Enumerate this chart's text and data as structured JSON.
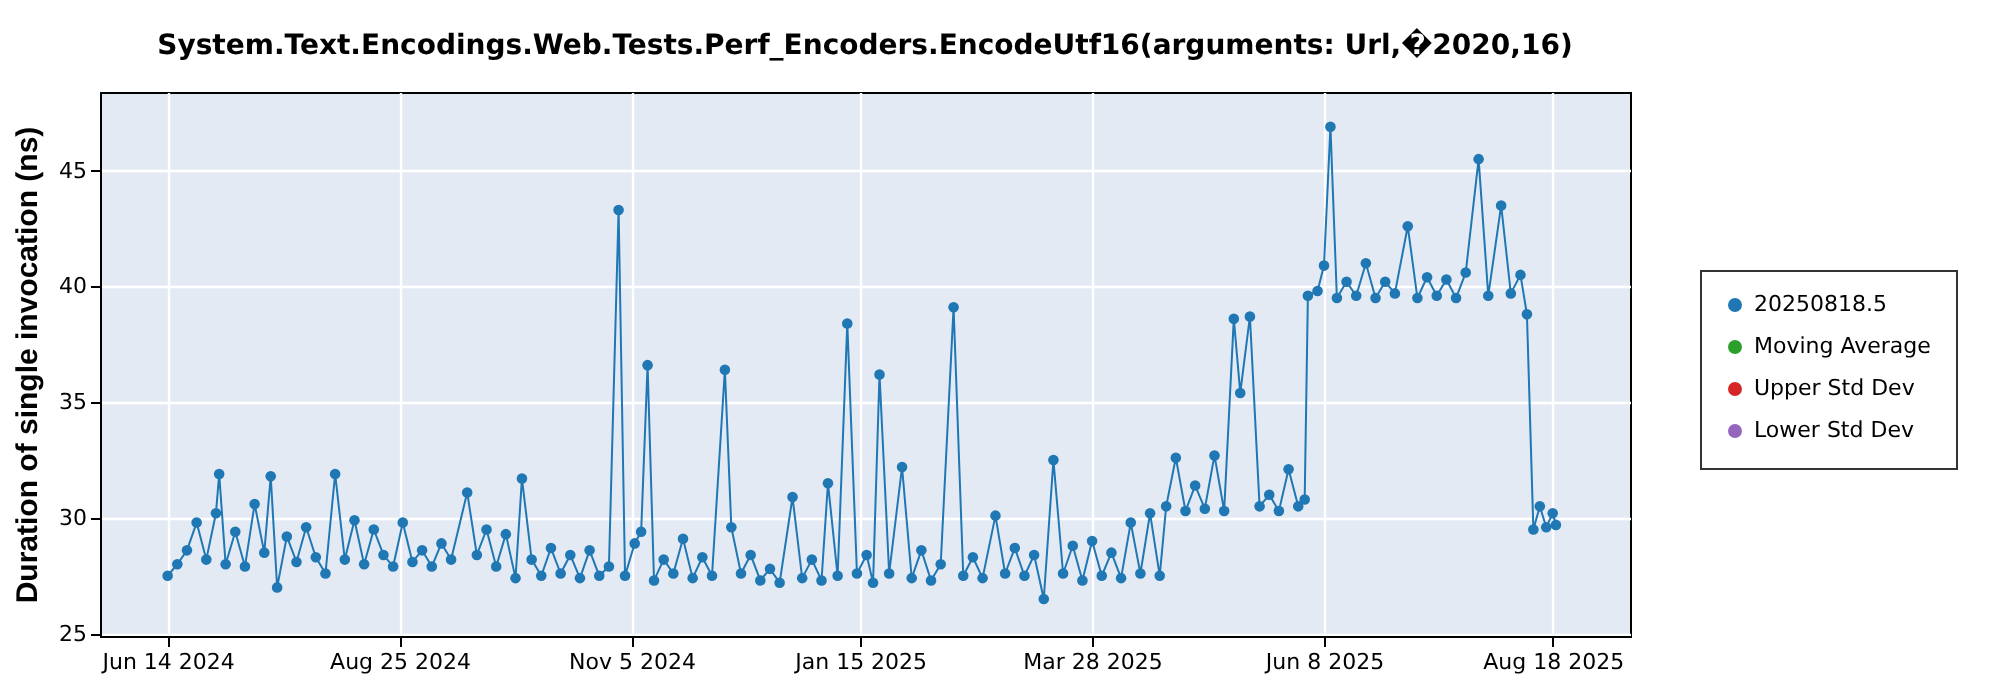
{
  "chart_data": {
    "type": "line",
    "title": "System.Text.Encodings.Web.Tests.Perf_Encoders.EncodeUtf16(arguments: Url,�2020,16)",
    "ylabel": "Duration of single invocation (ns)",
    "x": [
      "2024-06-14",
      "2024-06-17",
      "2024-06-20",
      "2024-06-23",
      "2024-06-26",
      "2024-06-29",
      "2024-06-30",
      "2024-07-02",
      "2024-07-05",
      "2024-07-08",
      "2024-07-11",
      "2024-07-14",
      "2024-07-16",
      "2024-07-18",
      "2024-07-21",
      "2024-07-24",
      "2024-07-27",
      "2024-07-30",
      "2024-08-02",
      "2024-08-05",
      "2024-08-08",
      "2024-08-11",
      "2024-08-14",
      "2024-08-17",
      "2024-08-20",
      "2024-08-23",
      "2024-08-26",
      "2024-08-29",
      "2024-09-01",
      "2024-09-04",
      "2024-09-07",
      "2024-09-10",
      "2024-09-15",
      "2024-09-18",
      "2024-09-21",
      "2024-09-24",
      "2024-09-27",
      "2024-09-30",
      "2024-10-02",
      "2024-10-05",
      "2024-10-08",
      "2024-10-11",
      "2024-10-14",
      "2024-10-17",
      "2024-10-20",
      "2024-10-23",
      "2024-10-26",
      "2024-10-29",
      "2024-11-01",
      "2024-11-03",
      "2024-11-06",
      "2024-11-08",
      "2024-11-10",
      "2024-11-12",
      "2024-11-15",
      "2024-11-18",
      "2024-11-21",
      "2024-11-24",
      "2024-11-27",
      "2024-11-30",
      "2024-12-04",
      "2024-12-06",
      "2024-12-09",
      "2024-12-12",
      "2024-12-15",
      "2024-12-18",
      "2024-12-21",
      "2024-12-25",
      "2024-12-28",
      "2024-12-31",
      "2025-01-03",
      "2025-01-05",
      "2025-01-08",
      "2025-01-11",
      "2025-01-14",
      "2025-01-17",
      "2025-01-19",
      "2025-01-21",
      "2025-01-24",
      "2025-01-28",
      "2025-01-31",
      "2025-02-03",
      "2025-02-06",
      "2025-02-09",
      "2025-02-13",
      "2025-02-16",
      "2025-02-19",
      "2025-02-22",
      "2025-02-26",
      "2025-03-01",
      "2025-03-04",
      "2025-03-07",
      "2025-03-10",
      "2025-03-13",
      "2025-03-16",
      "2025-03-19",
      "2025-03-22",
      "2025-03-25",
      "2025-03-28",
      "2025-03-31",
      "2025-04-03",
      "2025-04-06",
      "2025-04-09",
      "2025-04-12",
      "2025-04-15",
      "2025-04-18",
      "2025-04-20",
      "2025-04-23",
      "2025-04-26",
      "2025-04-29",
      "2025-05-02",
      "2025-05-05",
      "2025-05-08",
      "2025-05-11",
      "2025-05-13",
      "2025-05-16",
      "2025-05-19",
      "2025-05-22",
      "2025-05-25",
      "2025-05-28",
      "2025-05-31",
      "2025-06-02",
      "2025-06-03",
      "2025-06-06",
      "2025-06-08",
      "2025-06-10",
      "2025-06-12",
      "2025-06-15",
      "2025-06-18",
      "2025-06-21",
      "2025-06-24",
      "2025-06-27",
      "2025-06-30",
      "2025-07-04",
      "2025-07-07",
      "2025-07-10",
      "2025-07-13",
      "2025-07-16",
      "2025-07-19",
      "2025-07-22",
      "2025-07-26",
      "2025-07-29",
      "2025-08-02",
      "2025-08-05",
      "2025-08-08",
      "2025-08-10",
      "2025-08-12",
      "2025-08-14",
      "2025-08-16",
      "2025-08-18",
      "2025-08-19"
    ],
    "series": [
      {
        "name": "20250818.5",
        "color": "#1f77b4",
        "values": [
          27.5,
          28.0,
          28.6,
          29.8,
          28.2,
          30.2,
          31.9,
          28.0,
          29.4,
          27.9,
          30.6,
          28.5,
          31.8,
          27.0,
          29.2,
          28.1,
          29.6,
          28.3,
          27.6,
          31.9,
          28.2,
          29.9,
          28.0,
          29.5,
          28.4,
          27.9,
          29.8,
          28.1,
          28.6,
          27.9,
          28.9,
          28.2,
          31.1,
          28.4,
          29.5,
          27.9,
          29.3,
          27.4,
          31.7,
          28.2,
          27.5,
          28.7,
          27.6,
          28.4,
          27.4,
          28.6,
          27.5,
          27.9,
          43.3,
          27.5,
          28.9,
          29.4,
          36.6,
          27.3,
          28.2,
          27.6,
          29.1,
          27.4,
          28.3,
          27.5,
          36.4,
          29.6,
          27.6,
          28.4,
          27.3,
          27.8,
          27.2,
          30.9,
          27.4,
          28.2,
          27.3,
          31.5,
          27.5,
          38.4,
          27.6,
          28.4,
          27.2,
          36.2,
          27.6,
          32.2,
          27.4,
          28.6,
          27.3,
          28.0,
          39.1,
          27.5,
          28.3,
          27.4,
          30.1,
          27.6,
          28.7,
          27.5,
          28.4,
          26.5,
          32.5,
          27.6,
          28.8,
          27.3,
          29.0,
          27.5,
          28.5,
          27.4,
          29.8,
          27.6,
          30.2,
          27.5,
          30.5,
          32.6,
          30.3,
          31.4,
          30.4,
          32.7,
          30.3,
          38.6,
          35.4,
          38.7,
          30.5,
          31.0,
          30.3,
          32.1,
          30.5,
          30.8,
          39.6,
          39.8,
          40.9,
          46.9,
          39.5,
          40.2,
          39.6,
          41.0,
          39.5,
          40.2,
          39.7,
          42.6,
          39.5,
          40.4,
          39.6,
          40.3,
          39.5,
          40.6,
          45.5,
          39.6,
          43.5,
          39.7,
          40.5,
          38.8,
          29.5,
          30.5,
          29.6,
          30.2,
          29.7
        ]
      },
      {
        "name": "Moving Average",
        "color": "#2ca02c",
        "values": [
          null,
          null,
          null,
          null,
          null,
          null,
          null,
          null,
          null,
          null,
          null,
          null,
          null,
          null,
          null,
          null,
          null,
          null,
          null,
          null,
          null,
          null,
          null,
          null,
          null,
          null,
          null,
          null,
          null,
          null,
          null,
          null,
          null,
          null,
          null,
          null,
          null,
          null,
          null,
          null,
          null,
          null,
          null,
          null,
          null,
          null,
          null,
          null,
          null,
          null,
          null,
          null,
          null,
          null,
          null,
          null,
          null,
          null,
          null,
          null,
          null,
          null,
          null,
          null,
          null,
          null,
          null,
          null,
          null,
          null,
          null,
          null,
          null,
          null,
          null,
          null,
          null,
          null,
          null,
          null,
          null,
          null,
          null,
          null,
          null,
          null,
          null,
          null,
          null,
          null,
          null,
          null,
          null,
          null,
          null,
          null,
          null,
          null,
          null,
          null,
          null,
          null,
          null,
          null,
          null,
          null,
          null,
          null,
          null,
          null,
          null,
          null,
          null,
          null,
          null,
          null,
          null,
          null,
          null,
          null,
          null,
          null,
          null,
          null,
          null,
          null,
          null,
          null,
          null,
          null,
          null,
          null,
          null,
          null,
          null,
          null,
          null,
          null,
          null,
          null,
          null,
          null,
          null,
          null,
          null,
          null,
          null,
          null,
          null,
          null,
          null
        ]
      },
      {
        "name": "Upper Std Dev",
        "color": "#d62728",
        "values": [
          null,
          null,
          null,
          null,
          null,
          null,
          null,
          null,
          null,
          null,
          null,
          null,
          null,
          null,
          null,
          null,
          null,
          null,
          null,
          null,
          null,
          null,
          null,
          null,
          null,
          null,
          null,
          null,
          null,
          null,
          null,
          null,
          null,
          null,
          null,
          null,
          null,
          null,
          null,
          null,
          null,
          null,
          null,
          null,
          null,
          null,
          null,
          null,
          null,
          null,
          null,
          null,
          null,
          null,
          null,
          null,
          null,
          null,
          null,
          null,
          null,
          null,
          null,
          null,
          null,
          null,
          null,
          null,
          null,
          null,
          null,
          null,
          null,
          null,
          null,
          null,
          null,
          null,
          null,
          null,
          null,
          null,
          null,
          null,
          null,
          null,
          null,
          null,
          null,
          null,
          null,
          null,
          null,
          null,
          null,
          null,
          null,
          null,
          null,
          null,
          null,
          null,
          null,
          null,
          null,
          null,
          null,
          null,
          null,
          null,
          null,
          null,
          null,
          null,
          null,
          null,
          null,
          null,
          null,
          null,
          null,
          null,
          null,
          null,
          null,
          null,
          null,
          null,
          null,
          null,
          null,
          null,
          null,
          null,
          null,
          null,
          null,
          null,
          null,
          null,
          null,
          null,
          null,
          null,
          null,
          null,
          null,
          null,
          null,
          null,
          null
        ]
      },
      {
        "name": "Lower Std Dev",
        "color": "#9467bd",
        "values": [
          null,
          null,
          null,
          null,
          null,
          null,
          null,
          null,
          null,
          null,
          null,
          null,
          null,
          null,
          null,
          null,
          null,
          null,
          null,
          null,
          null,
          null,
          null,
          null,
          null,
          null,
          null,
          null,
          null,
          null,
          null,
          null,
          null,
          null,
          null,
          null,
          null,
          null,
          null,
          null,
          null,
          null,
          null,
          null,
          null,
          null,
          null,
          null,
          null,
          null,
          null,
          null,
          null,
          null,
          null,
          null,
          null,
          null,
          null,
          null,
          null,
          null,
          null,
          null,
          null,
          null,
          null,
          null,
          null,
          null,
          null,
          null,
          null,
          null,
          null,
          null,
          null,
          null,
          null,
          null,
          null,
          null,
          null,
          null,
          null,
          null,
          null,
          null,
          null,
          null,
          null,
          null,
          null,
          null,
          null,
          null,
          null,
          null,
          null,
          null,
          null,
          null,
          null,
          null,
          null,
          null,
          null,
          null,
          null,
          null,
          null,
          null,
          null,
          null,
          null,
          null,
          null,
          null,
          null,
          null,
          null,
          null,
          null,
          null,
          null,
          null,
          null,
          null,
          null,
          null,
          null,
          null,
          null,
          null,
          null,
          null,
          null,
          null,
          null,
          null,
          null,
          null,
          null,
          null,
          null,
          null,
          null,
          null,
          null,
          null,
          null
        ]
      }
    ],
    "xlim": [
      "2024-05-24",
      "2025-09-11"
    ],
    "xticks": [
      {
        "value": "2024-06-14",
        "label": "Jun 14 2024"
      },
      {
        "value": "2024-08-25",
        "label": "Aug 25 2024"
      },
      {
        "value": "2024-11-05",
        "label": "Nov 5 2024"
      },
      {
        "value": "2025-01-15",
        "label": "Jan 15 2025"
      },
      {
        "value": "2025-03-28",
        "label": "Mar 28 2025"
      },
      {
        "value": "2025-06-08",
        "label": "Jun 8 2025"
      },
      {
        "value": "2025-08-18",
        "label": "Aug 18 2025"
      }
    ],
    "ylim": [
      24.9,
      48.4
    ],
    "yticks": [
      25,
      30,
      35,
      40,
      45
    ],
    "grid": true,
    "legend": "right",
    "marker": "circle",
    "line_style": "solid"
  }
}
